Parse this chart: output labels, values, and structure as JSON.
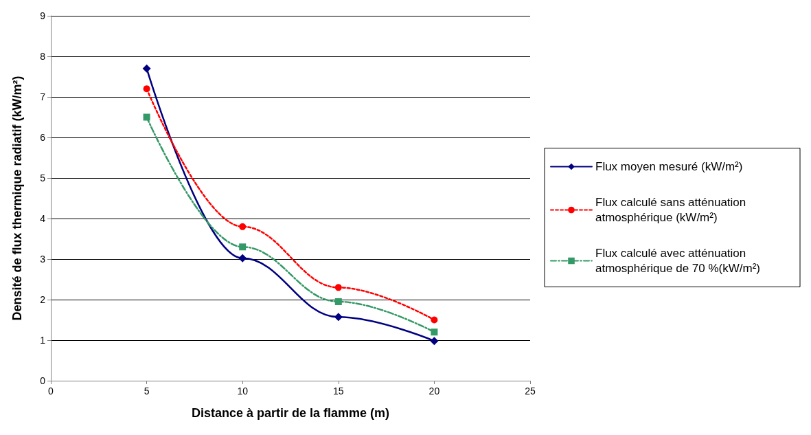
{
  "chart_data": {
    "type": "line",
    "xlabel": "Distance à partir de la flamme (m)",
    "ylabel": "Densité de flux thermique radiatif (kW/m²)",
    "x": [
      5,
      10,
      15,
      20
    ],
    "series": [
      {
        "name": "Flux moyen mesuré (kW/m²)",
        "color": "#000080",
        "values": [
          7.7,
          3.02,
          1.57,
          0.98
        ],
        "marker": "diamond",
        "line_style": "solid"
      },
      {
        "name": "Flux calculé sans atténuation atmosphérique (kW/m²)",
        "color": "#ff0000",
        "values": [
          7.2,
          3.8,
          2.3,
          1.5
        ],
        "marker": "circle",
        "line_style": "dotted"
      },
      {
        "name": "Flux calculé avec atténuation atmosphérique de 70 %(kW/m²)",
        "color": "#339966",
        "values": [
          6.5,
          3.3,
          1.95,
          1.2
        ],
        "marker": "square",
        "line_style": "dashed"
      }
    ],
    "xlim": [
      0,
      25
    ],
    "xticks": [
      0,
      5,
      10,
      15,
      20,
      25
    ],
    "ylim": [
      0,
      9
    ],
    "yticks": [
      0,
      1,
      2,
      3,
      4,
      5,
      6,
      7,
      8,
      9
    ],
    "grid": "y",
    "legend": "right"
  }
}
